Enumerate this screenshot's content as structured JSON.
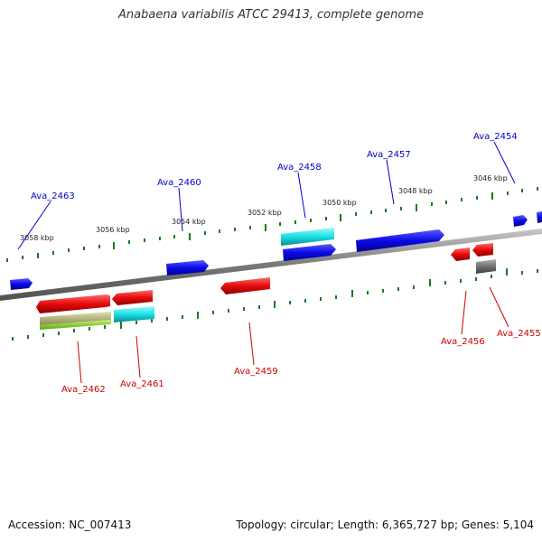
{
  "title": "Anabaena variabilis ATCC 29413, complete genome",
  "footer": {
    "accession": "Accession: NC_007413",
    "summary": "Topology: circular; Length: 6,365,727 bp; Genes: 5,104"
  },
  "colors": {
    "forward_gene": "#0a0ae6",
    "reverse_gene": "#e60a0a",
    "cyan_feature": "#19e0e6",
    "gray_feature": "#707070",
    "olive_feature": "#b8b870",
    "green_feature": "#7cd21c",
    "tick_marks": "#1a7a1a",
    "backbone": "#8a8a8a"
  },
  "ticks": [
    "3058 kbp",
    "3056 kbp",
    "3054 kbp",
    "3052 kbp",
    "3050 kbp",
    "3048 kbp",
    "3046 kbp"
  ],
  "genes_forward": [
    "Ava_2463",
    "Ava_2460",
    "Ava_2458",
    "Ava_2457",
    "Ava_2454"
  ],
  "genes_reverse": [
    "Ava_2462",
    "Ava_2461",
    "Ava_2459",
    "Ava_2456",
    "Ava_2455"
  ]
}
